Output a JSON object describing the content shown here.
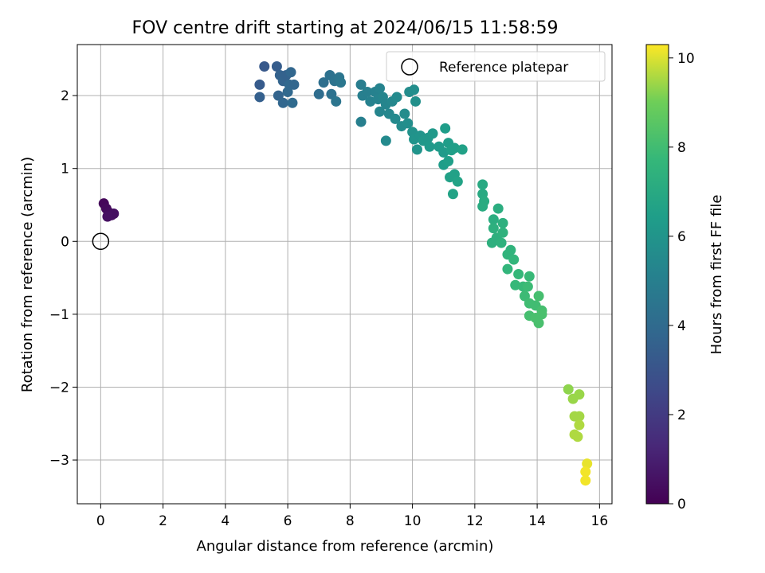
{
  "chart_data": {
    "type": "scatter",
    "title": "FOV centre drift starting at 2024/06/15 11:58:59",
    "xlabel": "Angular distance from reference (arcmin)",
    "ylabel": "Rotation from reference (arcmin)",
    "xlim": [
      -0.75,
      16.4
    ],
    "ylim": [
      -3.6,
      2.7
    ],
    "xticks": [
      0,
      2,
      4,
      6,
      8,
      10,
      12,
      14,
      16
    ],
    "yticks": [
      -3,
      -2,
      -1,
      0,
      1,
      2
    ],
    "grid": true,
    "legend": {
      "placement": "top-right",
      "entries": [
        "Reference platepar"
      ]
    },
    "colorbar": {
      "label": "Hours from first FF file",
      "range": [
        0,
        10.3
      ],
      "ticks": [
        0,
        2,
        4,
        6,
        8,
        10
      ],
      "colormap": "viridis"
    },
    "reference_point": {
      "x": 0,
      "y": 0
    },
    "points": [
      {
        "x": 0.1,
        "y": 0.52,
        "c": 0.2
      },
      {
        "x": 0.18,
        "y": 0.45,
        "c": 0.3
      },
      {
        "x": 0.25,
        "y": 0.4,
        "c": 0.35
      },
      {
        "x": 0.35,
        "y": 0.36,
        "c": 0.4
      },
      {
        "x": 0.42,
        "y": 0.38,
        "c": 0.45
      },
      {
        "x": 0.22,
        "y": 0.34,
        "c": 0.5
      },
      {
        "x": 5.25,
        "y": 2.4,
        "c": 3.2
      },
      {
        "x": 5.65,
        "y": 2.4,
        "c": 3.4
      },
      {
        "x": 5.1,
        "y": 2.15,
        "c": 3.3
      },
      {
        "x": 5.1,
        "y": 1.98,
        "c": 3.5
      },
      {
        "x": 5.75,
        "y": 2.28,
        "c": 3.6
      },
      {
        "x": 5.85,
        "y": 2.2,
        "c": 3.7
      },
      {
        "x": 5.95,
        "y": 2.28,
        "c": 3.6
      },
      {
        "x": 6.1,
        "y": 2.32,
        "c": 3.8
      },
      {
        "x": 6.05,
        "y": 2.15,
        "c": 3.9
      },
      {
        "x": 6.2,
        "y": 2.15,
        "c": 3.8
      },
      {
        "x": 5.7,
        "y": 2.0,
        "c": 3.7
      },
      {
        "x": 5.85,
        "y": 1.9,
        "c": 3.8
      },
      {
        "x": 6.0,
        "y": 2.05,
        "c": 3.9
      },
      {
        "x": 6.15,
        "y": 1.9,
        "c": 4.0
      },
      {
        "x": 7.0,
        "y": 2.02,
        "c": 4.1
      },
      {
        "x": 7.15,
        "y": 2.18,
        "c": 4.2
      },
      {
        "x": 7.35,
        "y": 2.28,
        "c": 4.3
      },
      {
        "x": 7.5,
        "y": 2.2,
        "c": 4.4
      },
      {
        "x": 7.65,
        "y": 2.25,
        "c": 4.5
      },
      {
        "x": 7.7,
        "y": 2.18,
        "c": 4.6
      },
      {
        "x": 7.4,
        "y": 2.02,
        "c": 4.3
      },
      {
        "x": 7.55,
        "y": 1.92,
        "c": 4.5
      },
      {
        "x": 8.35,
        "y": 2.15,
        "c": 4.9
      },
      {
        "x": 8.4,
        "y": 2.0,
        "c": 5.0
      },
      {
        "x": 8.55,
        "y": 2.05,
        "c": 5.0
      },
      {
        "x": 8.65,
        "y": 1.92,
        "c": 5.1
      },
      {
        "x": 8.8,
        "y": 2.05,
        "c": 5.1
      },
      {
        "x": 8.95,
        "y": 2.1,
        "c": 5.2
      },
      {
        "x": 8.9,
        "y": 1.95,
        "c": 5.2
      },
      {
        "x": 9.05,
        "y": 1.98,
        "c": 5.3
      },
      {
        "x": 9.15,
        "y": 1.88,
        "c": 5.3
      },
      {
        "x": 8.95,
        "y": 1.78,
        "c": 5.3
      },
      {
        "x": 9.25,
        "y": 1.75,
        "c": 5.4
      },
      {
        "x": 9.35,
        "y": 1.92,
        "c": 5.4
      },
      {
        "x": 9.5,
        "y": 1.98,
        "c": 5.5
      },
      {
        "x": 9.45,
        "y": 1.68,
        "c": 5.5
      },
      {
        "x": 9.65,
        "y": 1.58,
        "c": 5.6
      },
      {
        "x": 9.75,
        "y": 1.75,
        "c": 5.6
      },
      {
        "x": 9.85,
        "y": 1.62,
        "c": 5.7
      },
      {
        "x": 9.9,
        "y": 2.05,
        "c": 5.6
      },
      {
        "x": 10.05,
        "y": 2.08,
        "c": 5.7
      },
      {
        "x": 10.1,
        "y": 1.92,
        "c": 5.8
      },
      {
        "x": 8.35,
        "y": 1.64,
        "c": 5.0
      },
      {
        "x": 9.15,
        "y": 1.38,
        "c": 5.5
      },
      {
        "x": 10.0,
        "y": 1.5,
        "c": 5.9
      },
      {
        "x": 10.05,
        "y": 1.4,
        "c": 6.0
      },
      {
        "x": 10.25,
        "y": 1.45,
        "c": 6.0
      },
      {
        "x": 10.35,
        "y": 1.38,
        "c": 6.1
      },
      {
        "x": 10.5,
        "y": 1.42,
        "c": 6.1
      },
      {
        "x": 10.65,
        "y": 1.48,
        "c": 6.2
      },
      {
        "x": 10.15,
        "y": 1.26,
        "c": 6.0
      },
      {
        "x": 10.55,
        "y": 1.3,
        "c": 6.2
      },
      {
        "x": 10.85,
        "y": 1.3,
        "c": 6.3
      },
      {
        "x": 11.0,
        "y": 1.22,
        "c": 6.3
      },
      {
        "x": 11.05,
        "y": 1.55,
        "c": 6.4
      },
      {
        "x": 11.15,
        "y": 1.35,
        "c": 6.4
      },
      {
        "x": 11.25,
        "y": 1.25,
        "c": 6.5
      },
      {
        "x": 11.35,
        "y": 1.28,
        "c": 6.5
      },
      {
        "x": 11.6,
        "y": 1.26,
        "c": 6.6
      },
      {
        "x": 11.0,
        "y": 1.05,
        "c": 6.4
      },
      {
        "x": 11.15,
        "y": 1.1,
        "c": 6.5
      },
      {
        "x": 11.2,
        "y": 0.88,
        "c": 6.6
      },
      {
        "x": 11.35,
        "y": 0.92,
        "c": 6.6
      },
      {
        "x": 11.45,
        "y": 0.82,
        "c": 6.7
      },
      {
        "x": 11.3,
        "y": 0.65,
        "c": 6.7
      },
      {
        "x": 12.25,
        "y": 0.78,
        "c": 7.0
      },
      {
        "x": 12.25,
        "y": 0.65,
        "c": 7.0
      },
      {
        "x": 12.3,
        "y": 0.55,
        "c": 7.1
      },
      {
        "x": 12.25,
        "y": 0.48,
        "c": 7.1
      },
      {
        "x": 12.6,
        "y": 0.3,
        "c": 7.2
      },
      {
        "x": 12.75,
        "y": 0.45,
        "c": 7.2
      },
      {
        "x": 12.6,
        "y": 0.18,
        "c": 7.3
      },
      {
        "x": 12.7,
        "y": 0.05,
        "c": 7.3
      },
      {
        "x": 12.9,
        "y": 0.25,
        "c": 7.3
      },
      {
        "x": 12.9,
        "y": 0.12,
        "c": 7.4
      },
      {
        "x": 12.55,
        "y": -0.02,
        "c": 7.3
      },
      {
        "x": 12.85,
        "y": -0.02,
        "c": 7.4
      },
      {
        "x": 13.15,
        "y": -0.12,
        "c": 7.5
      },
      {
        "x": 13.05,
        "y": -0.18,
        "c": 7.5
      },
      {
        "x": 13.25,
        "y": -0.25,
        "c": 7.6
      },
      {
        "x": 13.05,
        "y": -0.38,
        "c": 7.6
      },
      {
        "x": 13.4,
        "y": -0.45,
        "c": 7.7
      },
      {
        "x": 13.3,
        "y": -0.6,
        "c": 7.7
      },
      {
        "x": 13.55,
        "y": -0.62,
        "c": 7.8
      },
      {
        "x": 13.75,
        "y": -0.48,
        "c": 7.8
      },
      {
        "x": 13.7,
        "y": -0.62,
        "c": 7.9
      },
      {
        "x": 13.6,
        "y": -0.75,
        "c": 7.9
      },
      {
        "x": 13.75,
        "y": -0.85,
        "c": 8.0
      },
      {
        "x": 13.95,
        "y": -0.88,
        "c": 8.0
      },
      {
        "x": 14.05,
        "y": -0.75,
        "c": 8.1
      },
      {
        "x": 14.15,
        "y": -0.95,
        "c": 8.1
      },
      {
        "x": 14.15,
        "y": -1.0,
        "c": 8.2
      },
      {
        "x": 13.75,
        "y": -1.02,
        "c": 8.1
      },
      {
        "x": 13.95,
        "y": -1.05,
        "c": 8.2
      },
      {
        "x": 14.05,
        "y": -1.12,
        "c": 8.2
      },
      {
        "x": 15.0,
        "y": -2.03,
        "c": 9.3
      },
      {
        "x": 15.15,
        "y": -2.16,
        "c": 9.4
      },
      {
        "x": 15.35,
        "y": -2.1,
        "c": 9.4
      },
      {
        "x": 15.2,
        "y": -2.4,
        "c": 9.5
      },
      {
        "x": 15.35,
        "y": -2.4,
        "c": 9.5
      },
      {
        "x": 15.35,
        "y": -2.52,
        "c": 9.6
      },
      {
        "x": 15.2,
        "y": -2.65,
        "c": 9.6
      },
      {
        "x": 15.3,
        "y": -2.68,
        "c": 9.6
      },
      {
        "x": 15.6,
        "y": -3.05,
        "c": 10.1
      },
      {
        "x": 15.55,
        "y": -3.16,
        "c": 10.2
      },
      {
        "x": 15.55,
        "y": -3.28,
        "c": 10.2
      }
    ]
  }
}
